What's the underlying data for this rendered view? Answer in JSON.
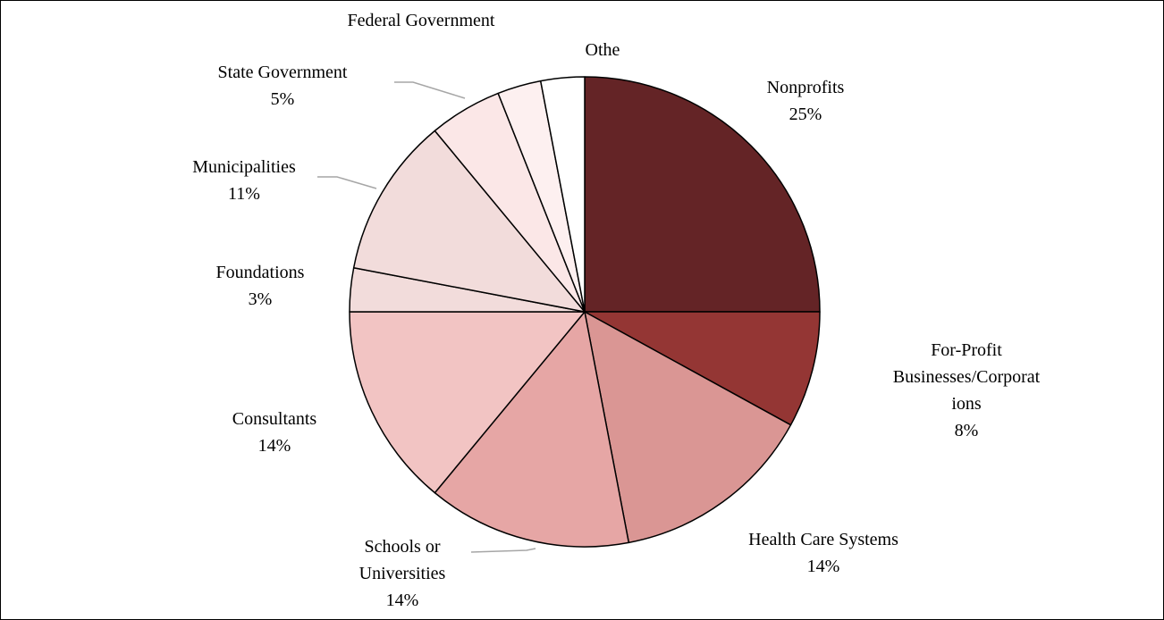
{
  "chart_data": {
    "type": "pie",
    "start_angle_deg": 0,
    "direction": "clockwise",
    "slices": [
      {
        "label": "Nonprofits",
        "value": 25,
        "value_label": "25%",
        "color": "#642426"
      },
      {
        "label": "For-Profit Businesses/Corporations",
        "label_lines": [
          "For-Profit",
          "Businesses/Corporat",
          "ions"
        ],
        "value": 8,
        "value_label": "8%",
        "color": "#943634"
      },
      {
        "label": "Health Care Systems",
        "value": 14,
        "value_label": "14%",
        "color": "#DA9694"
      },
      {
        "label": "Schools or Universities",
        "label_lines": [
          "Schools or",
          "Universities"
        ],
        "value": 14,
        "value_label": "14%",
        "color": "#E6A6A5"
      },
      {
        "label": "Consultants",
        "value": 14,
        "value_label": "14%",
        "color": "#F2C4C3"
      },
      {
        "label": "Foundations",
        "value": 3,
        "value_label": "3%",
        "color": "#F2DCDB"
      },
      {
        "label": "Municipalities",
        "value": 11,
        "value_label": "11%",
        "color": "#F2DCDB"
      },
      {
        "label": "State Government",
        "value": 5,
        "value_label": "5%",
        "color": "#FBE7E7"
      },
      {
        "label": "Federal Government",
        "value": 3,
        "value_label": "",
        "color": "#FDF0F0"
      },
      {
        "label": "Othe",
        "value": 3,
        "value_label": "",
        "color": "#FFFFFF"
      }
    ]
  }
}
